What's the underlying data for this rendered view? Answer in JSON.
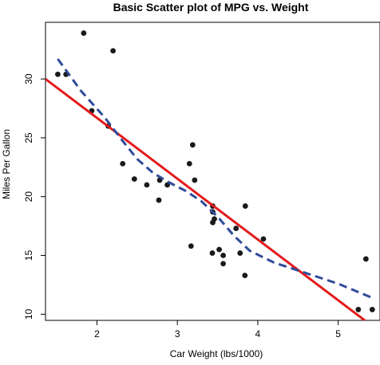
{
  "chart_data": {
    "type": "scatter",
    "title": "Basic Scatter plot of MPG vs. Weight",
    "xlabel": "Car Weight (lbs/1000)",
    "ylabel": "Miles Per Gallon",
    "xlim": [
      1.36,
      5.52
    ],
    "ylim": [
      9.48,
      34.82
    ],
    "x_ticks": [
      2,
      3,
      4,
      5
    ],
    "y_ticks": [
      10,
      15,
      20,
      25,
      30
    ],
    "grid": false,
    "points": [
      {
        "x": 2.62,
        "y": 21.0
      },
      {
        "x": 2.875,
        "y": 21.0
      },
      {
        "x": 2.32,
        "y": 22.8
      },
      {
        "x": 3.215,
        "y": 21.4
      },
      {
        "x": 3.44,
        "y": 18.7
      },
      {
        "x": 3.46,
        "y": 18.1
      },
      {
        "x": 3.57,
        "y": 14.3
      },
      {
        "x": 3.19,
        "y": 24.4
      },
      {
        "x": 3.15,
        "y": 22.8
      },
      {
        "x": 3.44,
        "y": 19.2
      },
      {
        "x": 3.44,
        "y": 17.8
      },
      {
        "x": 4.07,
        "y": 16.4
      },
      {
        "x": 3.73,
        "y": 17.3
      },
      {
        "x": 3.78,
        "y": 15.2
      },
      {
        "x": 5.25,
        "y": 10.4
      },
      {
        "x": 5.424,
        "y": 10.4
      },
      {
        "x": 5.345,
        "y": 14.7
      },
      {
        "x": 2.2,
        "y": 32.4
      },
      {
        "x": 1.615,
        "y": 30.4
      },
      {
        "x": 1.835,
        "y": 33.9
      },
      {
        "x": 2.465,
        "y": 21.5
      },
      {
        "x": 3.52,
        "y": 15.5
      },
      {
        "x": 3.435,
        "y": 15.2
      },
      {
        "x": 3.84,
        "y": 13.3
      },
      {
        "x": 3.845,
        "y": 19.2
      },
      {
        "x": 1.935,
        "y": 27.3
      },
      {
        "x": 2.14,
        "y": 26.0
      },
      {
        "x": 1.513,
        "y": 30.4
      },
      {
        "x": 3.17,
        "y": 15.8
      },
      {
        "x": 2.77,
        "y": 19.7
      },
      {
        "x": 3.57,
        "y": 15.0
      },
      {
        "x": 2.78,
        "y": 21.4
      }
    ],
    "regression_line": {
      "x": [
        1.36,
        5.52
      ],
      "y": [
        30.0,
        8.5
      ],
      "color": "#e31a1c"
    },
    "smooth_line": {
      "x": [
        1.513,
        1.8,
        2.1,
        2.3,
        2.5,
        2.7,
        2.9,
        3.1,
        3.3,
        3.5,
        3.7,
        3.9,
        4.2,
        4.6,
        5.0,
        5.424
      ],
      "y": [
        31.7,
        29.0,
        26.7,
        24.9,
        23.2,
        22.0,
        21.2,
        20.5,
        19.6,
        18.3,
        16.7,
        15.4,
        14.4,
        13.5,
        12.6,
        11.4
      ],
      "color": "#2f4b9a"
    },
    "colors": {
      "points": "#1a1a1a",
      "regression": "#e31a1c",
      "smooth": "#2f4b9a"
    }
  }
}
